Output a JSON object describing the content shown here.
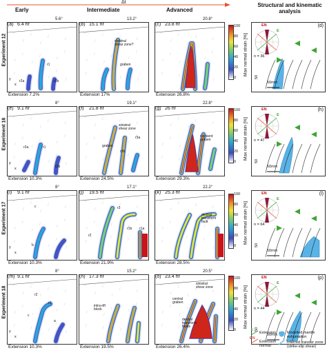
{
  "header": {
    "delta_t": "Δt",
    "col_early": "Early",
    "col_intermediate": "Intermediate",
    "col_advanced": "Advanced",
    "col_analysis_line1": "Structural and kinematic",
    "col_analysis_line2": "analysis"
  },
  "rows": [
    {
      "label": "Experiment 12",
      "panels": [
        {
          "id": "(a)",
          "time": "6.4 hr",
          "angle": "5.6°",
          "extension": "Extension 7.2%"
        },
        {
          "id": "(b)",
          "time": "15.1 hr",
          "angle": "13.2°",
          "extension": "Extension 17%"
        },
        {
          "id": "(c)",
          "time": "23.8 hr",
          "angle": "20.8°",
          "extension": "Extension 26.8%"
        }
      ],
      "analysis_id": "(d)",
      "n": "n = 36",
      "annotations": [
        "sinistral",
        "shear zone?",
        "graben",
        "r1",
        "r2a",
        "r2b"
      ]
    },
    {
      "label": "Experiment 16",
      "panels": [
        {
          "id": "(e)",
          "time": "9.1 hr",
          "angle": "8°",
          "extension": "Extension 10.3%"
        },
        {
          "id": "(f)",
          "time": "21.8 hr",
          "angle": "19.1°",
          "extension": "Extension 24.5%"
        },
        {
          "id": "(g)",
          "time": "26 hr",
          "angle": "22.8°",
          "extension": "Extension 29.3%"
        }
      ],
      "analysis_id": "(h)",
      "n": "n = 47",
      "annotations": [
        "r2a",
        "r1",
        "r2b",
        "sinistral",
        "shear zone",
        "graben",
        "r3a",
        "r3b",
        "incipient",
        "graben"
      ]
    },
    {
      "label": "Experiment 17",
      "panels": [
        {
          "id": "(i)",
          "time": "9.1 hr",
          "angle": "8°",
          "extension": "Extension 10.3%"
        },
        {
          "id": "(j)",
          "time": "19.5 hr",
          "angle": "17.1°",
          "extension": "Extension 21.9%"
        },
        {
          "id": "(k)",
          "time": "25.3 hr",
          "angle": "22.2°",
          "extension": "Extension 28.5%"
        }
      ],
      "analysis_id": "(l)",
      "n": "n = 64",
      "annotations": [
        "c",
        "b",
        "r3",
        "r2",
        "r1b",
        "r1a",
        "dextral",
        "transform",
        "fault"
      ]
    },
    {
      "label": "Experiment 18",
      "panels": [
        {
          "id": "(m)",
          "time": "9.1 hr",
          "angle": "8°",
          "extension": "Extension 10.3%"
        },
        {
          "id": "(n)",
          "time": "17.3 hr",
          "angle": "15.2°",
          "extension": "Extension 19.5%"
        },
        {
          "id": "(o)",
          "time": "23.4 hr",
          "angle": "20.5°",
          "extension": "Extension 26.4%"
        }
      ],
      "analysis_id": "(p)",
      "n": "n = 44",
      "annotations": [
        "r2",
        "c",
        "r1",
        "a",
        "intra-rift",
        "block",
        "sinistral",
        "shear zone",
        "central",
        "graben",
        "dextral",
        "transform",
        "faults"
      ]
    }
  ],
  "colorbar": {
    "title": "Max normal strain [%]",
    "ticks": [
      "100",
      "80",
      "60",
      "40",
      "20",
      "0"
    ]
  },
  "axes": {
    "y": "y",
    "x": "x"
  },
  "compass": {
    "en": "EN",
    "e": "E"
  },
  "scale": {
    "bar": "50mm",
    "tick": "50"
  },
  "legend": {
    "e_label": "E",
    "extension": "Extension",
    "en_label": "EN",
    "extension_normal": "Extension normal",
    "modelled": "Modelled mantle exhumation",
    "inferred": "Inferred transfer zone (strike-slip shear)"
  },
  "colors": {
    "accent_orange": "#e8502a",
    "dark_red": "#c9141a",
    "strain_blue": "#3b4cc0",
    "exhumation_blue": "#59b3e6",
    "arrow_green": "#3fa535",
    "rose_maroon": "#8b1a3a"
  }
}
